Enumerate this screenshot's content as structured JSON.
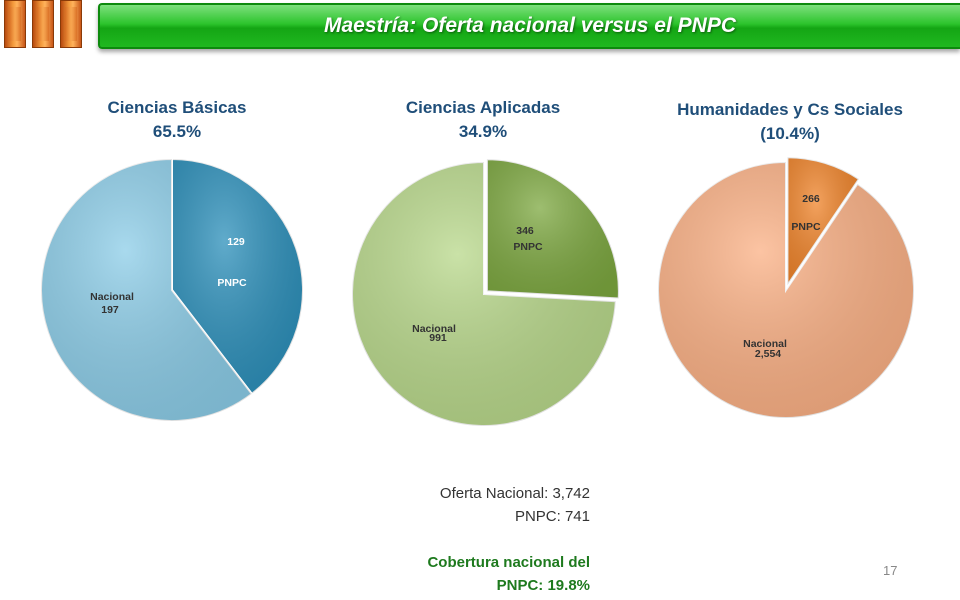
{
  "header": {
    "title": "Maestría: Oferta nacional versus el PNPC"
  },
  "charts": [
    {
      "title": "Ciencias Básicas",
      "pct": "65.5%",
      "slices": [
        {
          "label": "PNPC",
          "value": 129,
          "value_text": "129",
          "color": "#2b8fba"
        },
        {
          "label": "Nacional",
          "value": 197,
          "value_text": "197",
          "color": "#8ccde8"
        }
      ]
    },
    {
      "title": "Ciencias Aplicadas",
      "pct": "34.9%",
      "slices": [
        {
          "label": "PNPC",
          "value": 346,
          "value_text": "346",
          "color": "#7da840"
        },
        {
          "label": "Nacional",
          "value": 991,
          "value_text": "991",
          "color": "#b8d88a"
        }
      ]
    },
    {
      "title": "Humanidades  y Cs Sociales",
      "pct": "(10.4%)",
      "slices": [
        {
          "label": "PNPC",
          "value": 266,
          "value_text": "266",
          "color": "#f0842a"
        },
        {
          "label": "Nacional",
          "value": 2554,
          "value_text": "2,554",
          "color": "#fbb084"
        }
      ]
    }
  ],
  "summary": {
    "line1": "Oferta Nacional: 3,742",
    "line2": "PNPC: 741",
    "line3": "Cobertura nacional del",
    "line4": "PNPC: 19.8%"
  },
  "page_number": "17"
}
